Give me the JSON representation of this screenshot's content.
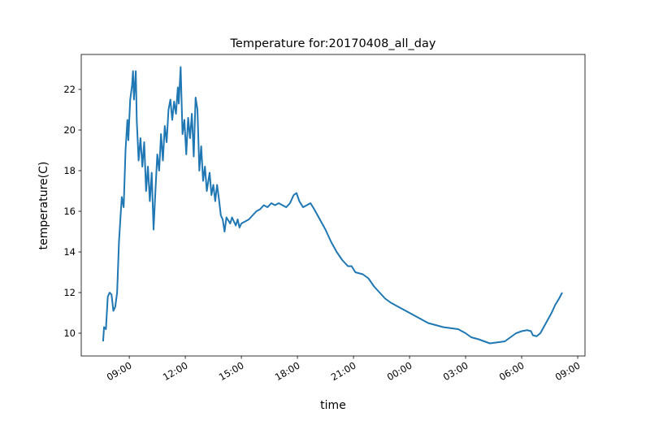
{
  "chart_data": {
    "type": "line",
    "title": "Temperature for:20170408_all_day",
    "xlabel": "time",
    "ylabel": "temperature(C)",
    "x": [
      7.6,
      7.65,
      7.75,
      7.85,
      7.95,
      8.05,
      8.15,
      8.25,
      8.35,
      8.45,
      8.55,
      8.6,
      8.7,
      8.8,
      8.9,
      8.95,
      9.05,
      9.15,
      9.2,
      9.25,
      9.35,
      9.4,
      9.5,
      9.6,
      9.7,
      9.8,
      9.9,
      10.0,
      10.1,
      10.2,
      10.3,
      10.4,
      10.5,
      10.6,
      10.7,
      10.8,
      10.9,
      11.0,
      11.1,
      11.2,
      11.3,
      11.4,
      11.5,
      11.6,
      11.65,
      11.75,
      11.85,
      11.95,
      12.05,
      12.15,
      12.25,
      12.35,
      12.45,
      12.55,
      12.65,
      12.75,
      12.85,
      12.95,
      13.05,
      13.15,
      13.3,
      13.4,
      13.5,
      13.6,
      13.7,
      13.8,
      13.9,
      14.0,
      14.1,
      14.2,
      14.4,
      14.5,
      14.7,
      14.8,
      14.9,
      15.0,
      15.2,
      15.4,
      15.6,
      15.8,
      16.0,
      16.2,
      16.4,
      16.6,
      16.8,
      17.0,
      17.2,
      17.4,
      17.6,
      17.8,
      17.95,
      18.1,
      18.3,
      18.5,
      18.7,
      18.9,
      19.2,
      19.5,
      19.8,
      20.1,
      20.4,
      20.7,
      20.9,
      21.1,
      21.5,
      21.8,
      22.1,
      22.4,
      22.7,
      23.0,
      23.4,
      23.8,
      24.2,
      24.6,
      25.0,
      25.4,
      25.8,
      26.2,
      26.6,
      27.0,
      27.3,
      27.7,
      28.0,
      28.3,
      28.7,
      29.1,
      29.4,
      29.7,
      30.0,
      30.3,
      30.5,
      30.6,
      30.8,
      31.0,
      31.3,
      31.6,
      31.8,
      32.0,
      32.17
    ],
    "series": [
      {
        "name": "temperature",
        "color": "#1f77b4",
        "values": [
          9.6,
          10.3,
          10.2,
          11.8,
          12.0,
          11.9,
          11.1,
          11.3,
          12.0,
          14.5,
          16.0,
          16.7,
          16.2,
          19.0,
          20.5,
          19.5,
          21.5,
          22.2,
          22.9,
          21.5,
          22.9,
          20.5,
          18.5,
          19.6,
          18.2,
          19.4,
          17.0,
          18.2,
          16.5,
          17.9,
          15.1,
          17.0,
          18.8,
          18.0,
          19.8,
          18.5,
          20.2,
          19.4,
          21.0,
          21.5,
          20.5,
          21.4,
          20.8,
          22.1,
          21.3,
          23.1,
          19.8,
          20.5,
          18.8,
          20.6,
          19.6,
          20.8,
          18.7,
          21.6,
          21.0,
          18.0,
          19.2,
          17.5,
          18.2,
          17.0,
          17.9,
          16.8,
          17.3,
          16.5,
          17.3,
          16.6,
          15.8,
          15.6,
          15.0,
          15.7,
          15.4,
          15.7,
          15.3,
          15.6,
          15.2,
          15.4,
          15.5,
          15.6,
          15.8,
          16.0,
          16.1,
          16.3,
          16.2,
          16.4,
          16.3,
          16.4,
          16.3,
          16.2,
          16.4,
          16.8,
          16.9,
          16.5,
          16.2,
          16.3,
          16.4,
          16.1,
          15.6,
          15.1,
          14.5,
          14.0,
          13.6,
          13.3,
          13.3,
          13.0,
          12.9,
          12.7,
          12.3,
          12.0,
          11.7,
          11.5,
          11.3,
          11.1,
          10.9,
          10.7,
          10.5,
          10.4,
          10.3,
          10.25,
          10.2,
          10.0,
          9.8,
          9.7,
          9.6,
          9.5,
          9.55,
          9.6,
          9.8,
          10.0,
          10.1,
          10.15,
          10.1,
          9.9,
          9.85,
          10.0,
          10.5,
          11.0,
          11.4,
          11.7,
          12.0
        ]
      }
    ],
    "xlim": [
      6.43,
      33.39
    ],
    "xticks": [
      {
        "value": 9,
        "label": "09:00"
      },
      {
        "value": 12,
        "label": "12:00"
      },
      {
        "value": 15,
        "label": "15:00"
      },
      {
        "value": 18,
        "label": "18:00"
      },
      {
        "value": 21,
        "label": "21:00"
      },
      {
        "value": 24,
        "label": "00:00"
      },
      {
        "value": 27,
        "label": "03:00"
      },
      {
        "value": 30,
        "label": "06:00"
      },
      {
        "value": 33,
        "label": "09:00"
      }
    ],
    "ylim": [
      8.88,
      23.72
    ],
    "yticks": [
      10,
      12,
      14,
      16,
      18,
      20,
      22
    ],
    "grid": false
  }
}
